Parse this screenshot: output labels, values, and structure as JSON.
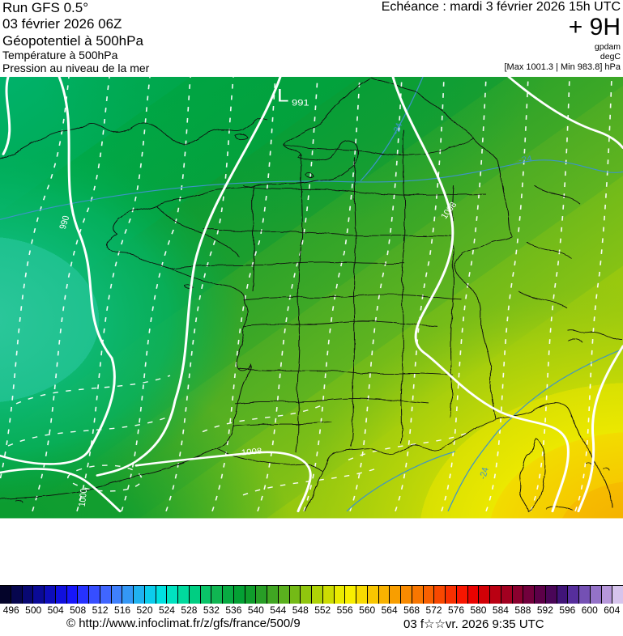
{
  "header": {
    "run": "Run GFS 0.5°",
    "run_date": "03 février 2026 06Z",
    "param_geo": "Géopotentiel à 500hPa",
    "param_temp": "Température à 500hPa",
    "param_pres": "Pression au niveau de la mer",
    "echeance": "Echéance : mardi 3 février 2026 15h UTC",
    "lead_time": "+ 9H",
    "unit_geo": "gpdam",
    "unit_temp": "degC",
    "minmax": "[Max 1001.3 | Min 983.8] hPa"
  },
  "map": {
    "low": {
      "symbol": "L",
      "value": "991"
    },
    "isobars": [
      "990",
      "1000",
      "1008",
      "1008"
    ],
    "isotherms": [
      "-24",
      "-24",
      "-24"
    ],
    "isotherm_color": "#3d94c8",
    "isobar_color": "#ffffff"
  },
  "colorbar": {
    "ticks": [
      "496",
      "500",
      "504",
      "508",
      "512",
      "516",
      "520",
      "524",
      "528",
      "532",
      "536",
      "540",
      "544",
      "548",
      "552",
      "556",
      "560",
      "564",
      "568",
      "572",
      "576",
      "580",
      "584",
      "588",
      "592",
      "596",
      "600",
      "604"
    ],
    "min_value": 494,
    "max_value": 606,
    "colors": [
      "#04042a",
      "#06064e",
      "#080872",
      "#0a0a96",
      "#0d0dba",
      "#1010de",
      "#1616fa",
      "#2632ff",
      "#364eff",
      "#4066ff",
      "#3f80fc",
      "#3498f6",
      "#20b2f0",
      "#0cccec",
      "#00e0e0",
      "#00e2c0",
      "#00da9e",
      "#00ce82",
      "#0ac468",
      "#10b652",
      "#08aa42",
      "#04a034",
      "#0f9c2b",
      "#289e26",
      "#40a622",
      "#5ab01e",
      "#74ba16",
      "#90c60e",
      "#aed206",
      "#ccdc02",
      "#eaea00",
      "#f8ee00",
      "#f8da00",
      "#f8c600",
      "#f8b200",
      "#f89e00",
      "#f88a00",
      "#f87600",
      "#f86000",
      "#f84800",
      "#f83000",
      "#f81600",
      "#ea0200",
      "#d20006",
      "#ba0012",
      "#a20020",
      "#8a002e",
      "#72003c",
      "#5c0048",
      "#4a0658",
      "#401478",
      "#562e9c",
      "#7450b4",
      "#9472c8",
      "#b697da",
      "#d6c4ec"
    ]
  },
  "footer": {
    "copyright": "© http://www.infoclimat.fr/z/gfs/france/500/9",
    "datetime": "03 f☆☆vr. 2026  9:35 UTC"
  }
}
